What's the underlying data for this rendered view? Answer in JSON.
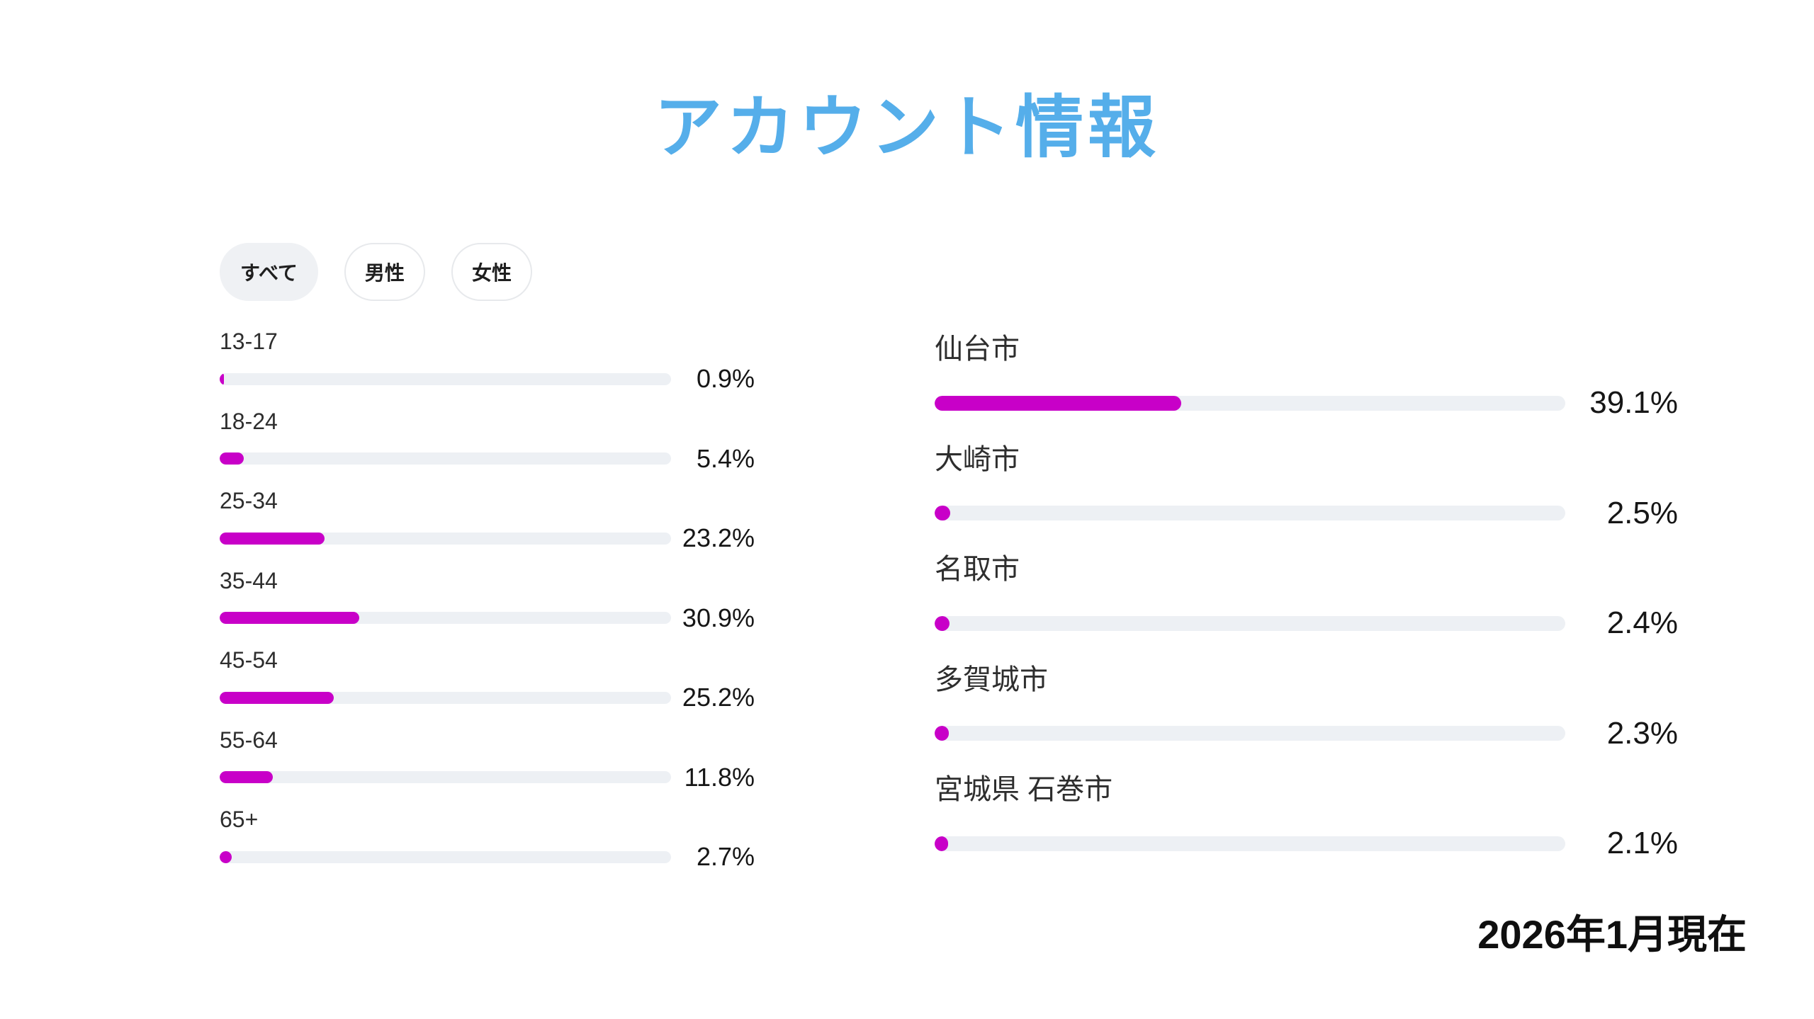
{
  "page": {
    "title": "アカウント情報",
    "footer_note": "2026年1月現在"
  },
  "colors": {
    "title_blue": "#55AEEA",
    "bar_magenta": "#C800C8",
    "bar_track": "#EDF0F4",
    "pill_active_bg": "#EFF1F4",
    "pill_border": "#E7E9EC"
  },
  "filters": {
    "items": [
      {
        "label": "すべて",
        "active": true
      },
      {
        "label": "男性",
        "active": false
      },
      {
        "label": "女性",
        "active": false
      }
    ]
  },
  "chart_data": [
    {
      "id": "age-distribution",
      "type": "bar",
      "orientation": "horizontal",
      "unit": "%",
      "x_max": 100,
      "grid": false,
      "categories": [
        "13-17",
        "18-24",
        "25-34",
        "35-44",
        "45-54",
        "55-64",
        "65+"
      ],
      "values": [
        0.9,
        5.4,
        23.2,
        30.9,
        25.2,
        11.8,
        2.7
      ],
      "value_labels": [
        "0.9%",
        "5.4%",
        "23.2%",
        "30.9%",
        "25.2%",
        "11.8%",
        "2.7%"
      ],
      "bar_color": "#C800C8",
      "track_color": "#EDF0F4"
    },
    {
      "id": "city-distribution",
      "type": "bar",
      "orientation": "horizontal",
      "unit": "%",
      "x_max": 100,
      "grid": false,
      "categories": [
        "仙台市",
        "大崎市",
        "名取市",
        "多賀城市",
        "宮城県 石巻市"
      ],
      "values": [
        39.1,
        2.5,
        2.4,
        2.3,
        2.1
      ],
      "value_labels": [
        "39.1%",
        "2.5%",
        "2.4%",
        "2.3%",
        "2.1%"
      ],
      "bar_color": "#C800C8",
      "track_color": "#EDF0F4"
    }
  ]
}
